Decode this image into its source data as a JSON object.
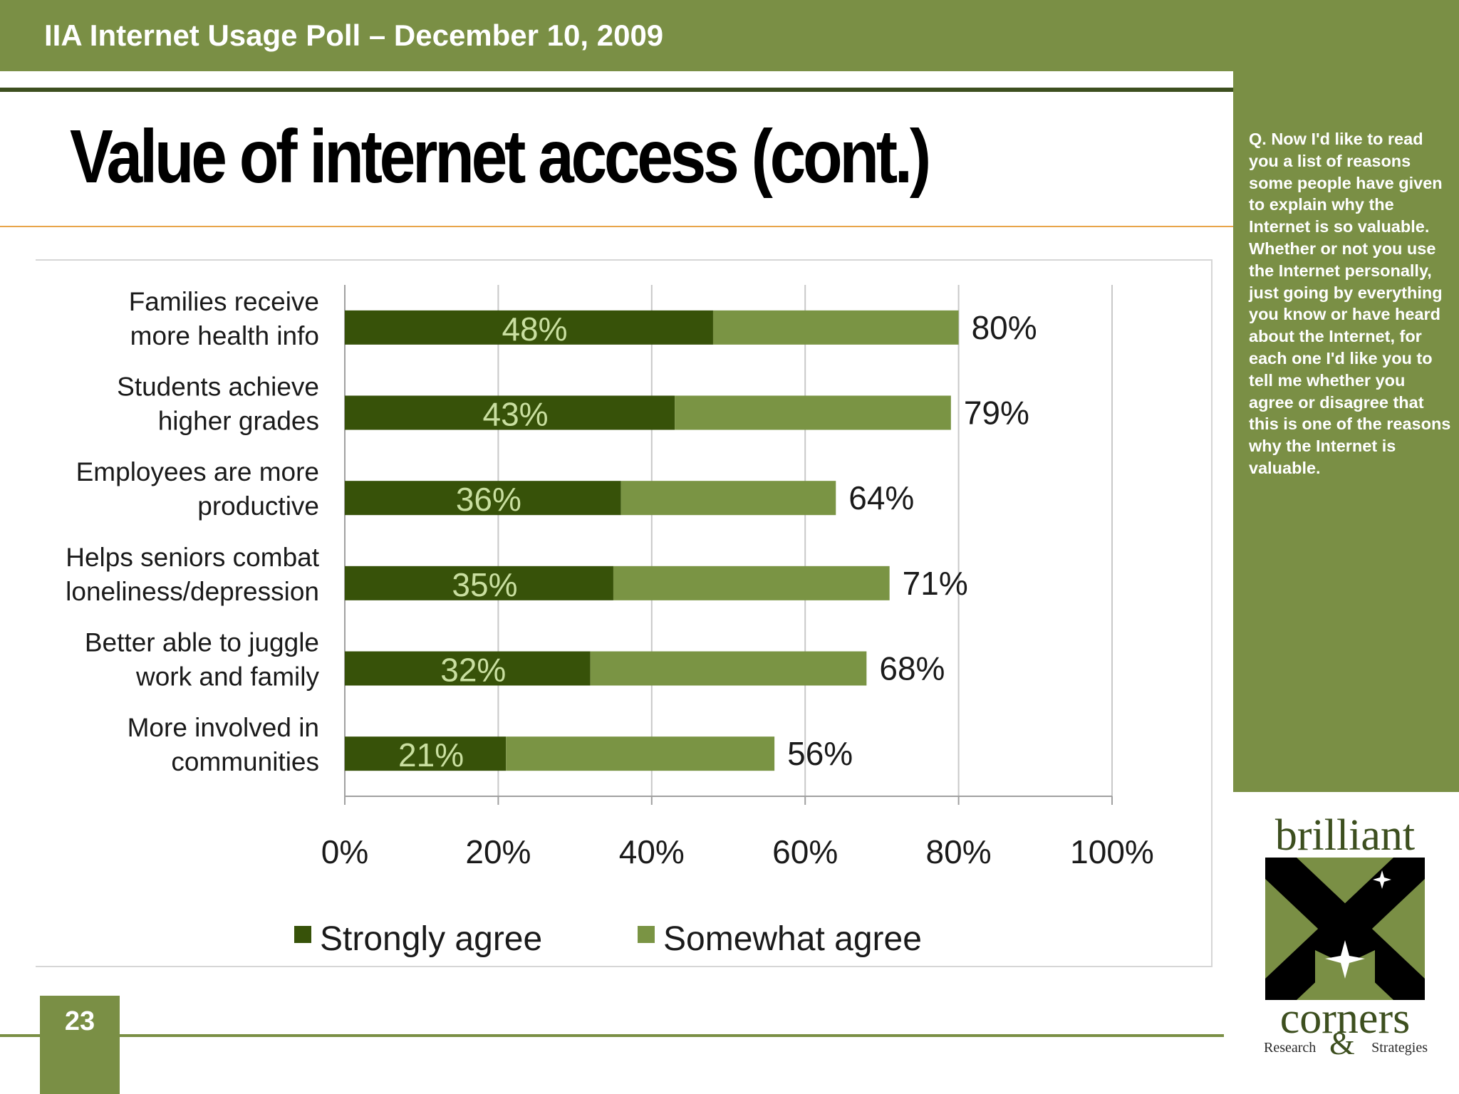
{
  "header": {
    "title": "IIA Internet Usage Poll – December 10, 2009"
  },
  "slide": {
    "title": "Value of internet access (cont.)",
    "page_number": "23"
  },
  "side_panel": {
    "question": "Q. Now I'd like to read you a list of reasons some people have given to explain why the Internet is so valuable.  Whether or not you use the Internet personally, just going by everything you know or have heard about the Internet, for each one I'd like you to tell me whether you agree or disagree that this is one of the reasons why the Internet is valuable."
  },
  "logo": {
    "top": "brilliant",
    "bottom": "corners",
    "sub_left": "Research",
    "sub_amp": "&",
    "sub_right": "Strategies"
  },
  "colors": {
    "header_green": "#7a8f45",
    "strongly": "#375209",
    "somewhat": "#7a9444",
    "dark_rule": "#3d4f1f",
    "orange_rule": "#e8a54a"
  },
  "chart_data": {
    "type": "bar",
    "orientation": "horizontal",
    "stacked": true,
    "categories": [
      [
        "Families receive",
        "more health info"
      ],
      [
        "Students achieve",
        "higher grades"
      ],
      [
        "Employees are more",
        "productive"
      ],
      [
        "Helps seniors combat",
        "loneliness/depression"
      ],
      [
        "Better able to juggle",
        "work and family"
      ],
      [
        "More involved in",
        "communities"
      ]
    ],
    "series": [
      {
        "name": "Strongly agree",
        "values": [
          48,
          43,
          36,
          35,
          32,
          21
        ],
        "labels": [
          "48%",
          "43%",
          "36%",
          "35%",
          "32%",
          "21%"
        ]
      },
      {
        "name": "Somewhat agree",
        "values": [
          32,
          36,
          28,
          36,
          36,
          35
        ]
      }
    ],
    "totals": [
      80,
      79,
      64,
      71,
      68,
      56
    ],
    "total_labels": [
      "80%",
      "79%",
      "64%",
      "71%",
      "68%",
      "56%"
    ],
    "xlim": [
      0,
      100
    ],
    "xticks": [
      0,
      20,
      40,
      60,
      80,
      100
    ],
    "xtick_labels": [
      "0%",
      "20%",
      "40%",
      "60%",
      "80%",
      "100%"
    ],
    "grid": true,
    "legend": "bottom"
  }
}
